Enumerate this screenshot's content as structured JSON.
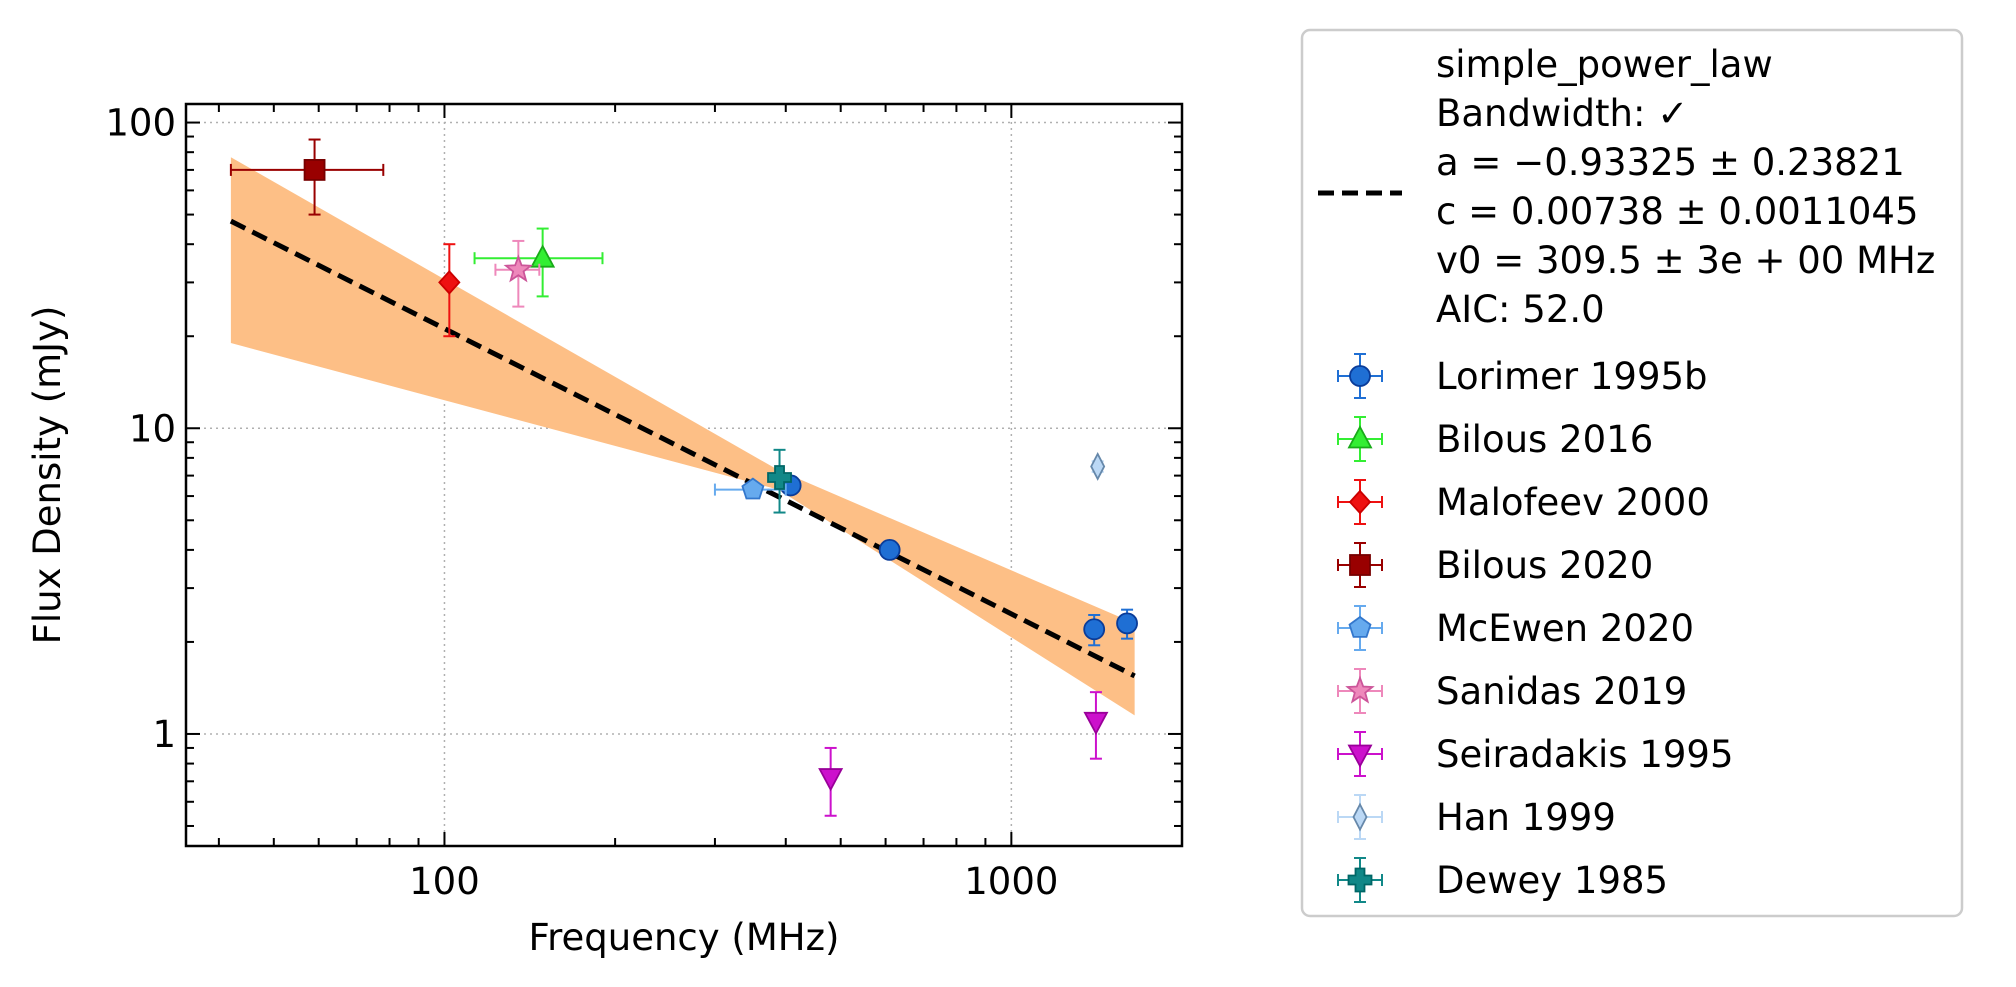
{
  "chart_data": {
    "type": "scatter",
    "xscale": "log",
    "yscale": "log",
    "xlim": [
      35,
      2000
    ],
    "ylim": [
      0.43,
      115
    ],
    "xlabel": "Frequency (MHz)",
    "ylabel": "Flux Density (mJy)",
    "x_ticks": [
      {
        "value": 100,
        "label": "100"
      },
      {
        "value": 1000,
        "label": "1000"
      }
    ],
    "y_ticks": [
      {
        "value": 1,
        "label": "1"
      },
      {
        "value": 10,
        "label": "10"
      },
      {
        "value": 100,
        "label": "100"
      }
    ],
    "grid": true,
    "legend_position": "outside-right",
    "fit": {
      "name": "simple_power_law",
      "legend_lines": [
        "simple_power_law",
        "Bandwidth: ✓",
        "a = −0.93325 ± 0.23821",
        "c = 0.00738 ± 0.0011045",
        "v0 = 309.5 ± 3e + 00 MHz",
        "AIC: 52.0"
      ],
      "a": -0.93325,
      "c": 0.00738,
      "v0_MHz": 309.5,
      "line_color": "#000000",
      "band_color": "#fdbf86",
      "x_range": [
        42,
        1650
      ],
      "band": [
        {
          "x": 42,
          "lower": 19,
          "upper": 77
        },
        {
          "x": 388,
          "lower": 6.3,
          "upper": 7.3
        },
        {
          "x": 1650,
          "lower": 1.15,
          "upper": 2.3
        }
      ]
    },
    "series": [
      {
        "name": "Lorimer 1995b",
        "marker": "circle",
        "color": "#1f6fd4",
        "edge": "#0a3c99",
        "points": [
          {
            "x": 408,
            "y": 6.5,
            "yerr": [
              0.1,
              0.1
            ]
          },
          {
            "x": 610,
            "y": 4.0,
            "yerr": [
              0.08,
              0.08
            ]
          },
          {
            "x": 1400,
            "y": 2.2,
            "yerr": [
              0.25,
              0.25
            ]
          },
          {
            "x": 1600,
            "y": 2.3,
            "yerr": [
              0.25,
              0.25
            ]
          }
        ]
      },
      {
        "name": "Bilous 2016",
        "marker": "triangle-up",
        "color": "#33ee33",
        "edge": "#19aa19",
        "points": [
          {
            "x": 149,
            "y": 36,
            "yerr": [
              9,
              9
            ],
            "xerr": [
              36,
              41
            ]
          }
        ]
      },
      {
        "name": "Malofeev 2000",
        "marker": "diamond",
        "color": "#ee1111",
        "edge": "#cc0000",
        "points": [
          {
            "x": 102,
            "y": 30,
            "yerr": [
              10,
              10
            ]
          }
        ]
      },
      {
        "name": "Bilous 2020",
        "marker": "square",
        "color": "#990000",
        "edge": "#770000",
        "points": [
          {
            "x": 59,
            "y": 70,
            "yerr": [
              20,
              18
            ],
            "xerr": [
              17,
              19
            ]
          }
        ]
      },
      {
        "name": "McEwen 2020",
        "marker": "pentagon",
        "color": "#66aaee",
        "edge": "#3377cc",
        "points": [
          {
            "x": 350,
            "y": 6.3,
            "yerr": [
              0.3,
              0.3
            ],
            "xerr": [
              50,
              50
            ]
          }
        ]
      },
      {
        "name": "Sanidas 2019",
        "marker": "star",
        "color": "#ee88bb",
        "edge": "#cc5599",
        "points": [
          {
            "x": 135,
            "y": 33,
            "yerr": [
              8,
              8
            ],
            "xerr": [
              12,
              12
            ]
          }
        ]
      },
      {
        "name": "Seiradakis 1995",
        "marker": "triangle-down",
        "color": "#cc11cc",
        "edge": "#990099",
        "points": [
          {
            "x": 480,
            "y": 0.72,
            "yerr": [
              0.18,
              0.18
            ]
          },
          {
            "x": 1410,
            "y": 1.1,
            "yerr": [
              0.27,
              0.27
            ]
          }
        ]
      },
      {
        "name": "Han 1999",
        "marker": "thin-diamond",
        "color": "#bbd8f5",
        "edge": "#6688aa",
        "points": [
          {
            "x": 1420,
            "y": 7.5,
            "yerr": [
              0.3,
              0.3
            ]
          }
        ]
      },
      {
        "name": "Dewey 1985",
        "marker": "plus",
        "color": "#118888",
        "edge": "#006666",
        "points": [
          {
            "x": 390,
            "y": 6.9,
            "yerr": [
              1.6,
              1.6
            ]
          }
        ]
      }
    ]
  }
}
